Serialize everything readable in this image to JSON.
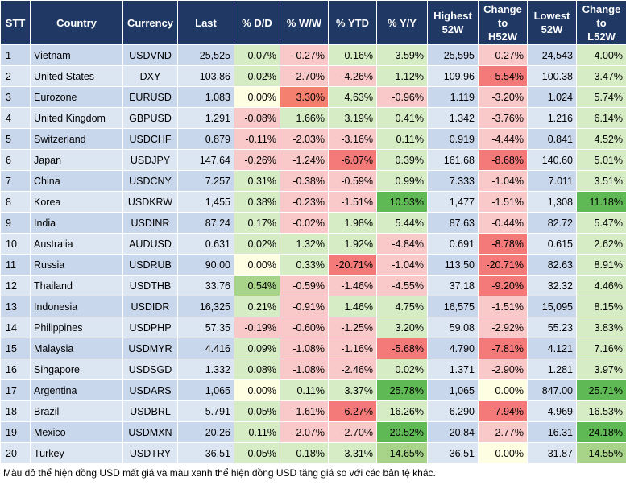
{
  "table": {
    "header": [
      "STT",
      "Country",
      "Currency",
      "Last",
      "% D/D",
      "% W/W",
      "% YTD",
      "% Y/Y",
      "Highest\n52W",
      "Change\nto\nH52W",
      "Lowest\n52W",
      "Change\nto\nL52W"
    ],
    "rows": [
      [
        "1",
        "Vietnam",
        "USDVND",
        "25,525",
        "0.07%",
        "-0.27%",
        "0.16%",
        "3.59%",
        "25,595",
        "-0.27%",
        "24,543",
        "4.00%"
      ],
      [
        "2",
        "United States",
        "DXY",
        "103.86",
        "0.02%",
        "-2.70%",
        "-4.26%",
        "1.12%",
        "109.96",
        "-5.54%",
        "100.38",
        "3.47%"
      ],
      [
        "3",
        "Eurozone",
        "EURUSD",
        "1.083",
        "0.00%",
        "3.30%",
        "4.63%",
        "-0.96%",
        "1.119",
        "-3.20%",
        "1.024",
        "5.74%"
      ],
      [
        "4",
        "United Kingdom",
        "GBPUSD",
        "1.291",
        "-0.08%",
        "1.66%",
        "3.19%",
        "0.41%",
        "1.342",
        "-3.76%",
        "1.216",
        "6.14%"
      ],
      [
        "5",
        "Switzerland",
        "USDCHF",
        "0.879",
        "-0.11%",
        "-2.03%",
        "-3.16%",
        "0.11%",
        "0.919",
        "-4.44%",
        "0.841",
        "4.52%"
      ],
      [
        "6",
        "Japan",
        "USDJPY",
        "147.64",
        "-0.26%",
        "-1.24%",
        "-6.07%",
        "0.39%",
        "161.68",
        "-8.68%",
        "140.60",
        "5.01%"
      ],
      [
        "7",
        "China",
        "USDCNY",
        "7.257",
        "0.31%",
        "-0.38%",
        "-0.59%",
        "0.99%",
        "7.333",
        "-1.04%",
        "7.011",
        "3.51%"
      ],
      [
        "8",
        "Korea",
        "USDKRW",
        "1,455",
        "0.38%",
        "-0.23%",
        "-1.51%",
        "10.53%",
        "1,477",
        "-1.51%",
        "1,308",
        "11.18%"
      ],
      [
        "9",
        "India",
        "USDINR",
        "87.24",
        "0.17%",
        "-0.02%",
        "1.98%",
        "5.44%",
        "87.63",
        "-0.44%",
        "82.72",
        "5.47%"
      ],
      [
        "10",
        "Australia",
        "AUDUSD",
        "0.631",
        "0.02%",
        "1.32%",
        "1.92%",
        "-4.84%",
        "0.691",
        "-8.78%",
        "0.615",
        "2.62%"
      ],
      [
        "11",
        "Russia",
        "USDRUB",
        "90.00",
        "0.00%",
        "0.33%",
        "-20.71%",
        "-1.04%",
        "113.50",
        "-20.71%",
        "82.63",
        "8.91%"
      ],
      [
        "12",
        "Thailand",
        "USDTHB",
        "33.76",
        "0.54%",
        "-0.59%",
        "-1.46%",
        "-4.55%",
        "37.18",
        "-9.20%",
        "32.32",
        "4.46%"
      ],
      [
        "13",
        "Indonesia",
        "USDIDR",
        "16,325",
        "0.21%",
        "-0.91%",
        "1.46%",
        "4.75%",
        "16,575",
        "-1.51%",
        "15,095",
        "8.15%"
      ],
      [
        "14",
        "Philippines",
        "USDPHP",
        "57.35",
        "-0.19%",
        "-0.60%",
        "-1.25%",
        "3.20%",
        "59.08",
        "-2.92%",
        "55.23",
        "3.83%"
      ],
      [
        "15",
        "Malaysia",
        "USDMYR",
        "4.416",
        "0.09%",
        "-1.08%",
        "-1.16%",
        "-5.68%",
        "4.790",
        "-7.81%",
        "4.121",
        "7.16%"
      ],
      [
        "16",
        "Singapore",
        "USDSGD",
        "1.332",
        "0.08%",
        "-1.08%",
        "-2.46%",
        "0.02%",
        "1.371",
        "-2.90%",
        "1.281",
        "3.97%"
      ],
      [
        "17",
        "Argentina",
        "USDARS",
        "1,065",
        "0.00%",
        "0.11%",
        "3.37%",
        "25.78%",
        "1,065",
        "0.00%",
        "847.00",
        "25.71%"
      ],
      [
        "18",
        "Brazil",
        "USDBRL",
        "5.791",
        "0.05%",
        "-1.61%",
        "-6.27%",
        "16.26%",
        "6.290",
        "-7.94%",
        "4.969",
        "16.53%"
      ],
      [
        "19",
        "Mexico",
        "USDMXN",
        "20.26",
        "0.11%",
        "-2.07%",
        "-2.70%",
        "20.52%",
        "20.84",
        "-2.77%",
        "16.31",
        "24.18%"
      ],
      [
        "20",
        "Turkey",
        "USDTRY",
        "36.51",
        "0.05%",
        "0.18%",
        "3.31%",
        "14.65%",
        "36.51",
        "0.00%",
        "31.87",
        "14.55%"
      ]
    ]
  },
  "footnote": "Màu đỏ thể hiện đồng USD mất giá và màu xanh thể hiện đồng USD tăng giá so với các bản tệ khác."
}
